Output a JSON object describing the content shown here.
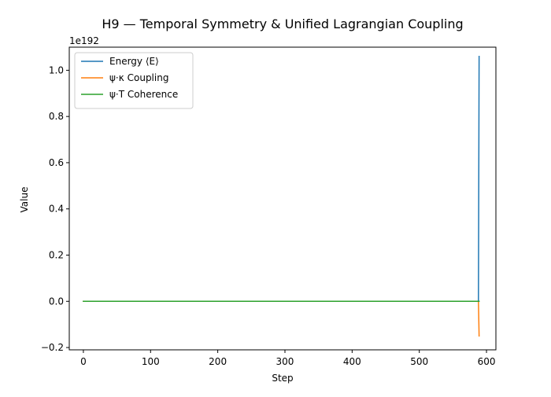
{
  "chart_data": {
    "type": "line",
    "title": "H9 — Temporal Symmetry & Unified Lagrangian Coupling",
    "xlabel": "Step",
    "ylabel": "Value",
    "y_offset_label": "1e192",
    "xlim": [
      -21,
      614
    ],
    "ylim": [
      -0.21,
      1.1
    ],
    "x_ticks": [
      0,
      100,
      200,
      300,
      400,
      500,
      600
    ],
    "x_tick_labels": [
      "0",
      "100",
      "200",
      "300",
      "400",
      "500",
      "600"
    ],
    "y_ticks": [
      -0.2,
      0.0,
      0.2,
      0.4,
      0.6,
      0.8,
      1.0
    ],
    "y_tick_labels": [
      "−0.2",
      "0.0",
      "0.2",
      "0.4",
      "0.6",
      "0.8",
      "1.0"
    ],
    "grid": false,
    "legend_position": "top-left",
    "series": [
      {
        "name": "Energy ⟨E⟩",
        "color": "#1f77b4",
        "x": [
          0,
          100,
          200,
          300,
          400,
          500,
          587,
          588,
          589
        ],
        "y": [
          0,
          0,
          0,
          0,
          0,
          0,
          0,
          0.0001,
          1.06
        ]
      },
      {
        "name": "ψ·κ Coupling",
        "color": "#ff7f0e",
        "x": [
          0,
          100,
          200,
          300,
          400,
          500,
          587,
          588,
          589
        ],
        "y": [
          0,
          0,
          0,
          0,
          0,
          0,
          0,
          0,
          -0.15
        ]
      },
      {
        "name": "ψ·T Coherence",
        "color": "#2ca02c",
        "x": [
          0,
          100,
          200,
          300,
          400,
          500,
          587,
          588,
          589
        ],
        "y": [
          0,
          0,
          0,
          0,
          0,
          0,
          0,
          0,
          0
        ]
      }
    ]
  }
}
